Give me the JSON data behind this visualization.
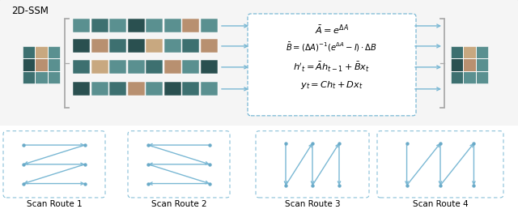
{
  "title": "2D-SSM",
  "title_fontsize": 8.5,
  "arrow_color": "#7ab8d4",
  "line_color": "#7ab8d4",
  "dot_color": "#6aaac8",
  "formula_lines": [
    "$\\bar{A} = e^{\\Delta A}$",
    "$\\bar{B} = (\\Delta A)^{-1}\\left(e^{\\Delta A} - I\\right) \\cdot \\Delta B$",
    "$h'_t = \\bar{A}h_{t-1} + \\bar{B}x_t$",
    "$y_t = Ch_t + Dx_t$"
  ],
  "scan_labels": [
    "Scan Route 1",
    "Scan Route 2",
    "Scan Route 3",
    "Scan Route 4"
  ],
  "label_fontsize": 7.5,
  "teal1": "#5a9090",
  "teal2": "#3d7070",
  "teal3": "#4a8585",
  "bear1": "#b89070",
  "bear2": "#c8a880",
  "dark1": "#2a5050",
  "dark2": "#1a4040"
}
